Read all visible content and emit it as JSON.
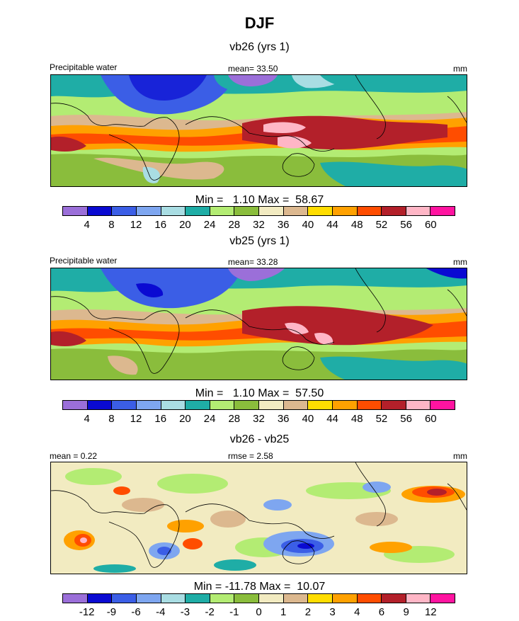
{
  "title": "DJF",
  "panels": [
    {
      "title": "vb26 (yrs 1)",
      "left_label": "Precipitable water",
      "center_label": "mean=  33.50",
      "right_label": "mm",
      "minmax": "Min =   1.10 Max =  58.67",
      "palette": "absolute"
    },
    {
      "title": "vb25 (yrs 1)",
      "left_label": "Precipitable water",
      "center_label": "mean=  33.28",
      "right_label": "mm",
      "minmax": "Min =   1.10 Max =  57.50",
      "palette": "absolute"
    },
    {
      "title": "vb26 - vb25",
      "left_label": "mean =   0.22",
      "center_label": "rmse =   2.58",
      "right_label": "mm",
      "minmax": "Min = -11.78 Max =  10.07",
      "palette": "difference"
    }
  ],
  "colorbar_absolute": {
    "colors": [
      "#9b6fd9",
      "#0a0ad2",
      "#3b5ee6",
      "#7ea6f0",
      "#a9dde3",
      "#1fada6",
      "#b3ec73",
      "#8abd3c",
      "#f2ebc1",
      "#dcb88f",
      "#ffdd00",
      "#ffa100",
      "#ff4d00",
      "#b3202a",
      "#ffb6c6",
      "#ff14a0"
    ],
    "tick_labels": [
      "4",
      "8",
      "12",
      "16",
      "20",
      "24",
      "28",
      "32",
      "36",
      "40",
      "44",
      "48",
      "52",
      "56",
      "60"
    ]
  },
  "colorbar_difference": {
    "colors": [
      "#9b6fd9",
      "#0a0ad2",
      "#3b5ee6",
      "#7ea6f0",
      "#a9dde3",
      "#1fada6",
      "#b3ec73",
      "#8abd3c",
      "#f2ebc1",
      "#dcb88f",
      "#ffdd00",
      "#ffa100",
      "#ff4d00",
      "#b3202a",
      "#ffb6c6",
      "#ff14a0"
    ],
    "tick_labels": [
      "-12",
      "-9",
      "-6",
      "-4",
      "-3",
      "-2",
      "-1",
      "0",
      "1",
      "2",
      "3",
      "4",
      "6",
      "9",
      "12"
    ]
  }
}
